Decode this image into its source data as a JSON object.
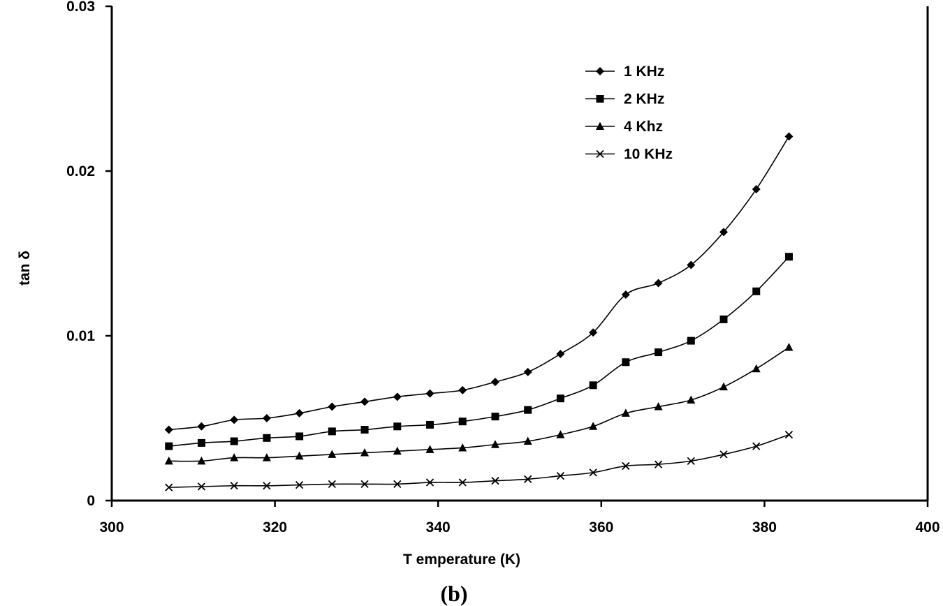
{
  "chart_data": {
    "type": "line",
    "title": "",
    "xlabel": "T emperature (K)",
    "ylabel": "tan δ",
    "xlim": [
      300,
      400
    ],
    "ylim": [
      0,
      0.03
    ],
    "x_ticks": [
      300,
      320,
      340,
      360,
      380,
      400
    ],
    "y_ticks": [
      0,
      0.01,
      0.02,
      0.03
    ],
    "x_tick_labels": [
      "300",
      "320",
      "340",
      "360",
      "380",
      "400"
    ],
    "y_tick_labels": [
      "0",
      "0.01",
      "0.02",
      "0.03"
    ],
    "legend_position": "top-right",
    "caption": "(b)",
    "x": [
      307,
      311,
      315,
      319,
      323,
      327,
      331,
      335,
      339,
      343,
      347,
      351,
      355,
      359,
      363,
      367,
      371,
      375,
      379,
      383
    ],
    "series": [
      {
        "name": "1 KHz",
        "marker": "diamond",
        "values": [
          0.0043,
          0.0045,
          0.0049,
          0.005,
          0.0053,
          0.0057,
          0.006,
          0.0063,
          0.0065,
          0.0067,
          0.0072,
          0.0078,
          0.0089,
          0.0102,
          0.0125,
          0.0132,
          0.0143,
          0.0163,
          0.0189,
          0.0221
        ]
      },
      {
        "name": "2 KHz",
        "marker": "square",
        "values": [
          0.0033,
          0.0035,
          0.0036,
          0.0038,
          0.0039,
          0.0042,
          0.0043,
          0.0045,
          0.0046,
          0.0048,
          0.0051,
          0.0055,
          0.0062,
          0.007,
          0.0084,
          0.009,
          0.0097,
          0.011,
          0.0127,
          0.0148
        ]
      },
      {
        "name": "4 Khz",
        "marker": "triangle",
        "values": [
          0.0024,
          0.0024,
          0.0026,
          0.0026,
          0.0027,
          0.0028,
          0.0029,
          0.003,
          0.0031,
          0.0032,
          0.0034,
          0.0036,
          0.004,
          0.0045,
          0.0053,
          0.0057,
          0.0061,
          0.0069,
          0.008,
          0.0093
        ]
      },
      {
        "name": "10 KHz",
        "marker": "x",
        "values": [
          0.0008,
          0.00085,
          0.0009,
          0.0009,
          0.00095,
          0.001,
          0.001,
          0.001,
          0.0011,
          0.0011,
          0.0012,
          0.0013,
          0.0015,
          0.0017,
          0.0021,
          0.0022,
          0.0024,
          0.0028,
          0.0033,
          0.004
        ]
      }
    ]
  }
}
